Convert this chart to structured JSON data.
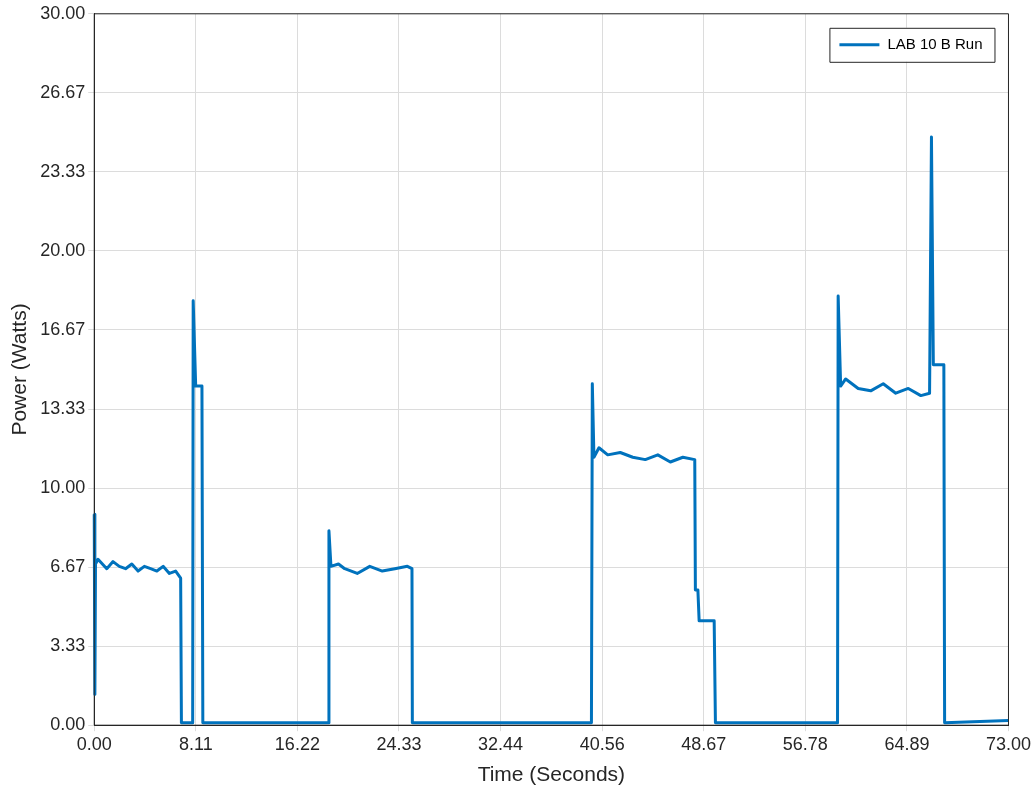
{
  "chart_data": {
    "type": "line",
    "xlabel": "Time (Seconds)",
    "ylabel": "Power (Watts)",
    "xlim": [
      0,
      73
    ],
    "ylim": [
      0,
      30
    ],
    "xticks": [
      {
        "value": 0,
        "label": "0.00"
      },
      {
        "value": 8.11,
        "label": "8.11"
      },
      {
        "value": 16.22,
        "label": "16.22"
      },
      {
        "value": 24.33,
        "label": "24.33"
      },
      {
        "value": 32.44,
        "label": "32.44"
      },
      {
        "value": 40.56,
        "label": "40.56"
      },
      {
        "value": 48.67,
        "label": "48.67"
      },
      {
        "value": 56.78,
        "label": "56.78"
      },
      {
        "value": 64.89,
        "label": "64.89"
      },
      {
        "value": 73,
        "label": "73.00"
      }
    ],
    "yticks": [
      {
        "value": 0,
        "label": "0.00"
      },
      {
        "value": 3.33,
        "label": "3.33"
      },
      {
        "value": 6.67,
        "label": "6.67"
      },
      {
        "value": 10,
        "label": "10.00"
      },
      {
        "value": 13.33,
        "label": "13.33"
      },
      {
        "value": 16.67,
        "label": "16.67"
      },
      {
        "value": 20,
        "label": "20.00"
      },
      {
        "value": 23.33,
        "label": "23.33"
      },
      {
        "value": 26.67,
        "label": "26.67"
      },
      {
        "value": 30,
        "label": "30.00"
      }
    ],
    "grid": true,
    "legend": "top right",
    "marker": "none",
    "line_style": "solid",
    "series": [
      {
        "name": "LAB 10 B Run",
        "color": "#0072bd",
        "x": [
          0,
          0.05,
          0.1,
          0.3,
          1,
          1.5,
          2,
          2.5,
          3,
          3.5,
          4,
          4.5,
          5,
          5.5,
          6,
          6.5,
          6.9,
          6.96,
          7.86,
          7.9,
          8.1,
          8.35,
          8.6,
          8.67,
          12,
          18.7,
          18.74,
          18.9,
          19.5,
          20,
          21,
          22,
          23,
          24,
          25,
          25.37,
          25.4,
          32,
          39.7,
          39.77,
          39.9,
          40.3,
          41,
          42,
          43,
          44,
          45,
          46,
          47,
          47.95,
          48.0,
          48.2,
          48.3,
          49.5,
          49.6,
          55,
          59.35,
          59.4,
          59.6,
          60,
          61,
          62,
          63,
          64,
          65,
          66,
          66.7,
          66.85,
          67,
          67.84,
          67.9,
          73
        ],
        "values": [
          8.9,
          1.3,
          6.8,
          7.0,
          6.6,
          6.9,
          6.7,
          6.6,
          6.8,
          6.5,
          6.7,
          6.6,
          6.5,
          6.7,
          6.4,
          6.5,
          6.2,
          0.1,
          0.1,
          17.9,
          14.3,
          14.3,
          14.3,
          0.1,
          0.1,
          0.1,
          8.2,
          6.7,
          6.8,
          6.6,
          6.4,
          6.7,
          6.5,
          6.6,
          6.7,
          6.6,
          0.1,
          0.1,
          0.1,
          14.4,
          11.3,
          11.7,
          11.4,
          11.5,
          11.3,
          11.2,
          11.4,
          11.1,
          11.3,
          11.2,
          5.7,
          5.7,
          4.4,
          4.4,
          0.1,
          0.1,
          0.1,
          18.1,
          14.3,
          14.6,
          14.2,
          14.1,
          14.4,
          14.0,
          14.2,
          13.9,
          14.0,
          24.8,
          15.2,
          15.2,
          0.1,
          0.2
        ]
      }
    ]
  }
}
